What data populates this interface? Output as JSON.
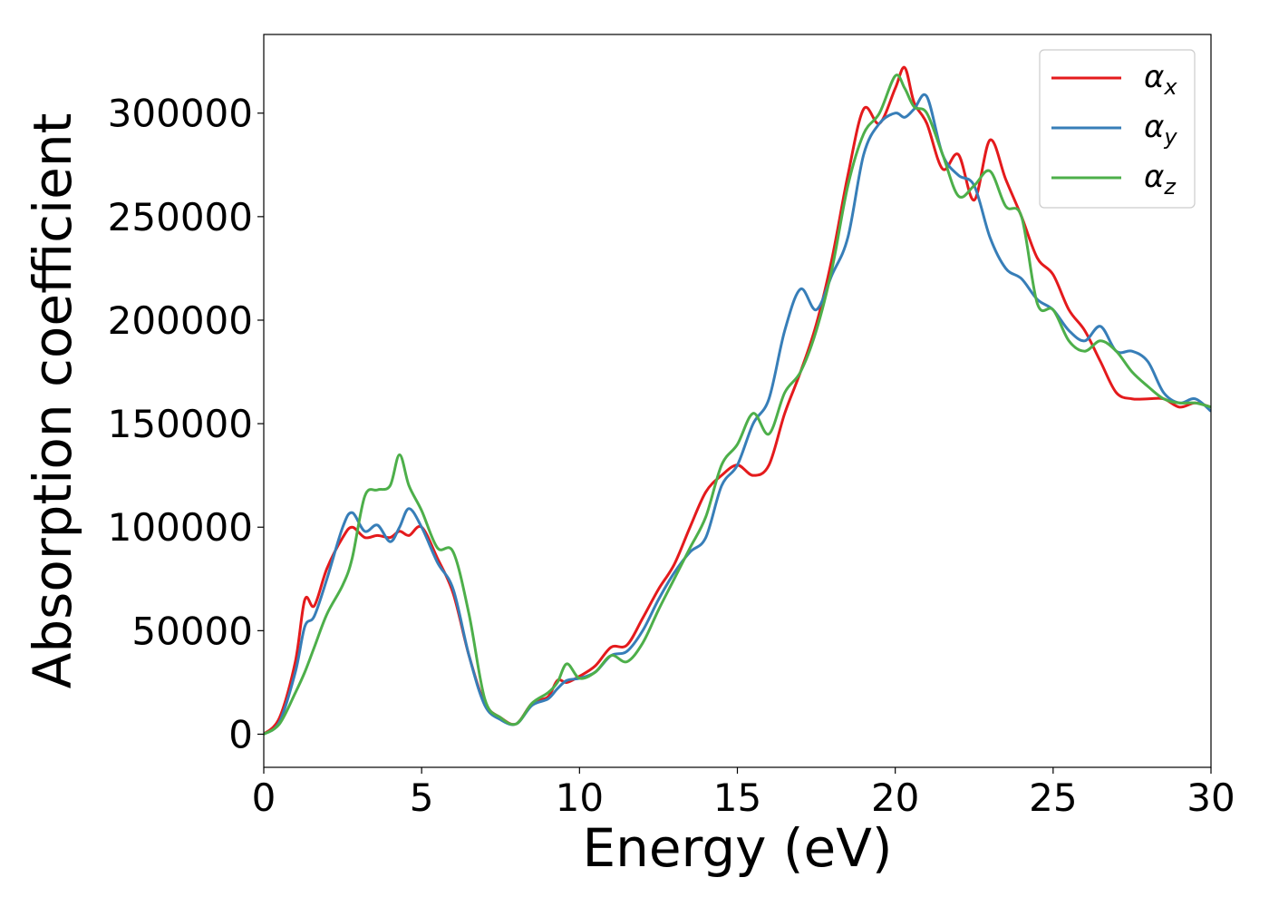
{
  "chart_data": {
    "type": "line",
    "title": "",
    "xlabel": "Energy (eV)",
    "ylabel": "Absorption coefficient",
    "xlim": [
      0,
      30
    ],
    "ylim": [
      -16000,
      338000
    ],
    "xticks": [
      0,
      5,
      10,
      15,
      20,
      25,
      30
    ],
    "xtick_labels": [
      "0",
      "5",
      "10",
      "15",
      "20",
      "25",
      "30"
    ],
    "yticks": [
      0,
      50000,
      100000,
      150000,
      200000,
      250000,
      300000
    ],
    "ytick_labels": [
      "0",
      "50000",
      "100000",
      "150000",
      "200000",
      "250000",
      "300000"
    ],
    "grid": false,
    "legend_position": "top-right",
    "series": [
      {
        "name": "αx",
        "symbol": "α",
        "subscript": "x",
        "color": "#e41a1c",
        "x": [
          0,
          0.5,
          1.0,
          1.3,
          1.6,
          2.0,
          2.5,
          2.8,
          3.2,
          3.6,
          4.0,
          4.3,
          4.6,
          5.0,
          5.5,
          6.0,
          6.5,
          7.0,
          7.5,
          8.0,
          8.5,
          9.0,
          9.3,
          9.6,
          10.0,
          10.5,
          11.0,
          11.5,
          12.0,
          12.5,
          13.0,
          13.5,
          14.0,
          14.5,
          15.0,
          15.5,
          16.0,
          16.5,
          17.0,
          17.5,
          18.0,
          18.5,
          19.0,
          19.5,
          20.0,
          20.3,
          20.6,
          21.0,
          21.5,
          22.0,
          22.5,
          23.0,
          23.5,
          24.0,
          24.5,
          25.0,
          25.5,
          26.0,
          26.5,
          27.0,
          27.5,
          28.0,
          28.5,
          29.0,
          29.5,
          30.0
        ],
        "y": [
          0,
          8000,
          35000,
          65000,
          62000,
          80000,
          95000,
          100000,
          95000,
          96000,
          95000,
          98000,
          96000,
          100000,
          85000,
          68000,
          38000,
          15000,
          8000,
          5000,
          15000,
          18000,
          26000,
          25000,
          28000,
          33000,
          42000,
          43000,
          56000,
          70000,
          82000,
          100000,
          117000,
          125000,
          130000,
          125000,
          130000,
          155000,
          175000,
          198000,
          230000,
          270000,
          302000,
          295000,
          312000,
          322000,
          305000,
          295000,
          273000,
          280000,
          258000,
          287000,
          268000,
          250000,
          230000,
          222000,
          205000,
          195000,
          180000,
          165000,
          162000,
          162000,
          162000,
          158000,
          160000,
          158000
        ]
      },
      {
        "name": "αy",
        "symbol": "α",
        "subscript": "y",
        "color": "#377eb8",
        "x": [
          0,
          0.5,
          1.0,
          1.3,
          1.6,
          2.0,
          2.5,
          2.8,
          3.2,
          3.6,
          4.0,
          4.3,
          4.6,
          5.0,
          5.5,
          6.0,
          6.5,
          7.0,
          7.5,
          8.0,
          8.5,
          9.0,
          9.3,
          9.6,
          10.0,
          10.5,
          11.0,
          11.5,
          12.0,
          12.5,
          13.0,
          13.5,
          14.0,
          14.5,
          15.0,
          15.5,
          16.0,
          16.5,
          17.0,
          17.5,
          18.0,
          18.5,
          19.0,
          19.5,
          20.0,
          20.3,
          20.6,
          21.0,
          21.5,
          22.0,
          22.5,
          23.0,
          23.5,
          24.0,
          24.5,
          25.0,
          25.5,
          26.0,
          26.5,
          27.0,
          27.5,
          28.0,
          28.5,
          29.0,
          29.5,
          30.0
        ],
        "y": [
          0,
          6000,
          30000,
          52000,
          57000,
          75000,
          100000,
          107000,
          98000,
          101000,
          93000,
          100000,
          109000,
          100000,
          83000,
          70000,
          38000,
          14000,
          7000,
          5000,
          14000,
          17000,
          22000,
          26000,
          27000,
          30000,
          38000,
          40000,
          50000,
          65000,
          78000,
          88000,
          95000,
          120000,
          130000,
          150000,
          162000,
          195000,
          215000,
          205000,
          222000,
          240000,
          280000,
          295000,
          300000,
          298000,
          302000,
          308000,
          280000,
          270000,
          265000,
          240000,
          225000,
          220000,
          210000,
          205000,
          195000,
          190000,
          197000,
          185000,
          185000,
          180000,
          165000,
          160000,
          162000,
          156000
        ]
      },
      {
        "name": "αz",
        "symbol": "α",
        "subscript": "z",
        "color": "#4daf4a",
        "x": [
          0,
          0.5,
          1.0,
          1.3,
          1.6,
          2.0,
          2.5,
          2.8,
          3.2,
          3.6,
          4.0,
          4.3,
          4.6,
          5.0,
          5.5,
          6.0,
          6.5,
          7.0,
          7.5,
          8.0,
          8.5,
          9.0,
          9.3,
          9.6,
          10.0,
          10.5,
          11.0,
          11.5,
          12.0,
          12.5,
          13.0,
          13.5,
          14.0,
          14.5,
          15.0,
          15.5,
          16.0,
          16.5,
          17.0,
          17.5,
          18.0,
          18.5,
          19.0,
          19.5,
          20.0,
          20.3,
          20.6,
          21.0,
          21.5,
          22.0,
          22.5,
          23.0,
          23.5,
          24.0,
          24.5,
          25.0,
          25.5,
          26.0,
          26.5,
          27.0,
          27.5,
          28.0,
          28.5,
          29.0,
          29.5,
          30.0
        ],
        "y": [
          0,
          5000,
          20000,
          30000,
          42000,
          58000,
          72000,
          85000,
          115000,
          118000,
          120000,
          135000,
          120000,
          108000,
          90000,
          88000,
          58000,
          17000,
          8000,
          5000,
          15000,
          20000,
          25000,
          34000,
          27000,
          30000,
          38000,
          35000,
          44000,
          60000,
          75000,
          90000,
          105000,
          130000,
          140000,
          155000,
          145000,
          165000,
          175000,
          195000,
          225000,
          265000,
          290000,
          300000,
          318000,
          312000,
          303000,
          300000,
          280000,
          260000,
          265000,
          272000,
          255000,
          250000,
          208000,
          205000,
          190000,
          185000,
          190000,
          185000,
          175000,
          168000,
          162000,
          160000,
          160000,
          158000
        ]
      }
    ]
  }
}
